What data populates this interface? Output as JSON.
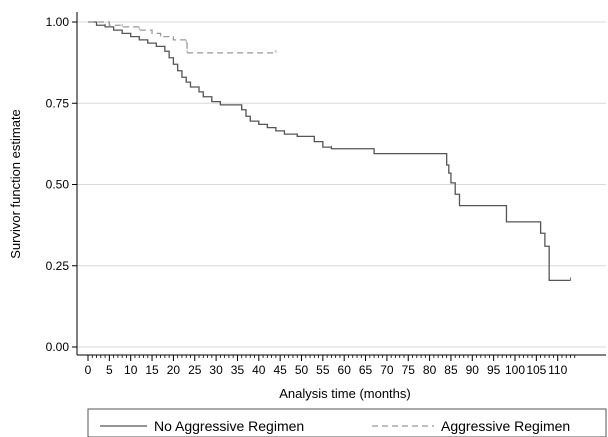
{
  "chart_data": {
    "type": "line",
    "title": "",
    "xlabel": "Analysis time (months)",
    "ylabel": "Survivor function estimate",
    "xlim": [
      0,
      115
    ],
    "ylim": [
      0,
      1
    ],
    "x_ticks": [
      0,
      5,
      10,
      15,
      20,
      25,
      30,
      35,
      40,
      45,
      50,
      55,
      60,
      65,
      70,
      75,
      80,
      85,
      90,
      95,
      100,
      105,
      110
    ],
    "x_minor_step": 1,
    "y_ticks": [
      "0.00",
      "0.25",
      "0.50",
      "0.75",
      "1.00"
    ],
    "grid": true,
    "legend_position": "bottom",
    "series": [
      {
        "name": "No Aggressive Regimen",
        "style": "solid",
        "color": "#555555",
        "step_points": [
          [
            0,
            1.0
          ],
          [
            2,
            0.99
          ],
          [
            4,
            0.985
          ],
          [
            6,
            0.975
          ],
          [
            8,
            0.965
          ],
          [
            10,
            0.955
          ],
          [
            12,
            0.945
          ],
          [
            14,
            0.935
          ],
          [
            16,
            0.925
          ],
          [
            18,
            0.91
          ],
          [
            19,
            0.89
          ],
          [
            20,
            0.87
          ],
          [
            21,
            0.85
          ],
          [
            22,
            0.83
          ],
          [
            23,
            0.815
          ],
          [
            24,
            0.8
          ],
          [
            26,
            0.785
          ],
          [
            27,
            0.77
          ],
          [
            29,
            0.755
          ],
          [
            31,
            0.745
          ],
          [
            36,
            0.73
          ],
          [
            37,
            0.71
          ],
          [
            38,
            0.695
          ],
          [
            40,
            0.685
          ],
          [
            42,
            0.675
          ],
          [
            44,
            0.665
          ],
          [
            46,
            0.655
          ],
          [
            49,
            0.648
          ],
          [
            53,
            0.632
          ],
          [
            55,
            0.615
          ],
          [
            57,
            0.61
          ],
          [
            67,
            0.595
          ],
          [
            84,
            0.56
          ],
          [
            84.5,
            0.535
          ],
          [
            85,
            0.505
          ],
          [
            86,
            0.47
          ],
          [
            87,
            0.435
          ],
          [
            98,
            0.385
          ],
          [
            106,
            0.35
          ],
          [
            107,
            0.31
          ],
          [
            108,
            0.205
          ],
          [
            113,
            0.205
          ]
        ]
      },
      {
        "name": "Aggressive Regimen",
        "style": "dashed",
        "color": "#999999",
        "step_points": [
          [
            0,
            1.0
          ],
          [
            5,
            0.99
          ],
          [
            8,
            0.985
          ],
          [
            12,
            0.975
          ],
          [
            15,
            0.965
          ],
          [
            17,
            0.955
          ],
          [
            20,
            0.945
          ],
          [
            23,
            0.935
          ],
          [
            23.2,
            0.905
          ],
          [
            44,
            0.905
          ]
        ]
      }
    ]
  }
}
